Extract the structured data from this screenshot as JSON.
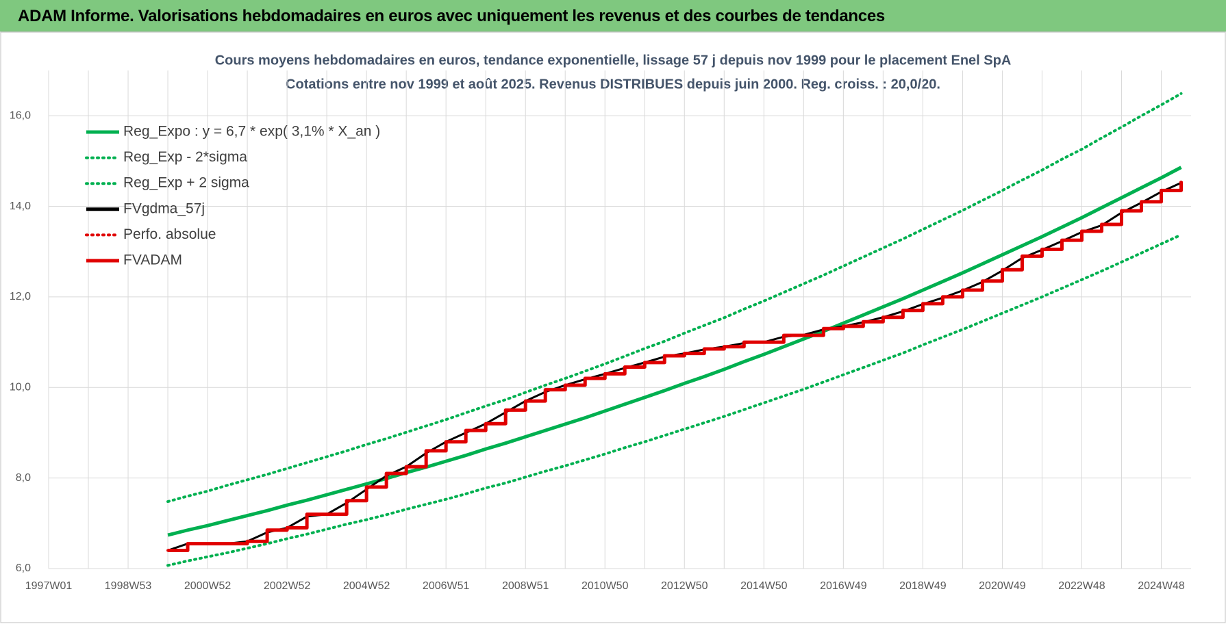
{
  "header": {
    "title": "ADAM Informe. Valorisations hebdomadaires en euros avec uniquement les revenus et des courbes de tendances"
  },
  "chart_data": {
    "type": "line",
    "title": "Cours moyens hebdomadaires en euros, tendance exponentielle, lissage 57 j depuis nov 1999 pour le placement Enel SpA",
    "subtitle": "Cotations entre nov 1999 et août 2025. Revenus DISTRIBUES depuis juin 2000. Reg. croiss. : 20,0/20.",
    "categories": [
      "1997W01",
      null,
      null,
      null,
      "1998W53",
      null,
      null,
      null,
      "2000W52",
      null,
      null,
      null,
      "2002W52",
      null,
      null,
      null,
      "2004W52",
      null,
      null,
      null,
      "2006W51",
      null,
      null,
      null,
      "2008W51",
      null,
      null,
      null,
      "2010W50",
      null,
      null,
      null,
      "2012W50",
      null,
      null,
      null,
      "2014W50",
      null,
      null,
      null,
      "2016W49",
      null,
      null,
      null,
      "2018W49",
      null,
      null,
      null,
      "2020W49",
      null,
      null,
      null,
      "2022W48",
      null,
      null,
      null,
      "2024W48",
      null
    ],
    "ylim": [
      6,
      17
    ],
    "yticks": [
      {
        "value": 6,
        "label": "6,0"
      },
      {
        "value": 8,
        "label": "8,0"
      },
      {
        "value": 10,
        "label": "10,0"
      },
      {
        "value": 12,
        "label": "12,0"
      },
      {
        "value": 14,
        "label": "14,0"
      },
      {
        "value": 16,
        "label": "16,0"
      }
    ],
    "grid": true,
    "legend": "upper left",
    "series": [
      {
        "name": "Reg_Expo : y = 6,7 * exp( 3,1% *  X_an )",
        "color": "#00b050",
        "dash": "solid",
        "values": [
          null,
          null,
          null,
          null,
          null,
          null,
          6.74,
          6.85,
          6.95,
          7.06,
          7.17,
          7.28,
          7.4,
          7.51,
          7.63,
          7.75,
          7.87,
          7.99,
          8.12,
          8.24,
          8.37,
          8.5,
          8.64,
          8.77,
          8.91,
          9.05,
          9.19,
          9.33,
          9.48,
          9.63,
          9.78,
          9.93,
          10.09,
          10.24,
          10.4,
          10.57,
          10.73,
          10.9,
          11.07,
          11.24,
          11.42,
          11.6,
          11.78,
          11.96,
          12.15,
          12.34,
          12.53,
          12.73,
          12.93,
          13.13,
          13.33,
          13.54,
          13.75,
          13.97,
          14.19,
          14.41,
          14.63,
          14.86
        ]
      },
      {
        "name": "Reg_Exp - 2*sigma",
        "color": "#00b050",
        "dash": "dotted",
        "values": [
          null,
          null,
          null,
          null,
          null,
          null,
          6.07,
          6.17,
          6.26,
          6.35,
          6.45,
          6.55,
          6.66,
          6.76,
          6.87,
          6.98,
          7.08,
          7.19,
          7.31,
          7.42,
          7.53,
          7.65,
          7.78,
          7.89,
          8.02,
          8.15,
          8.27,
          8.4,
          8.53,
          8.67,
          8.8,
          8.94,
          9.08,
          9.22,
          9.36,
          9.51,
          9.66,
          9.81,
          9.96,
          10.12,
          10.28,
          10.44,
          10.6,
          10.76,
          10.94,
          11.11,
          11.28,
          11.46,
          11.64,
          11.82,
          12.0,
          12.19,
          12.38,
          12.57,
          12.77,
          12.97,
          13.17,
          13.37
        ]
      },
      {
        "name": "Reg_Exp + 2 sigma",
        "color": "#00b050",
        "dash": "dotted",
        "values": [
          null,
          null,
          null,
          null,
          null,
          null,
          7.48,
          7.6,
          7.71,
          7.84,
          7.96,
          8.08,
          8.21,
          8.34,
          8.47,
          8.6,
          8.74,
          8.87,
          9.01,
          9.15,
          9.29,
          9.44,
          9.59,
          9.73,
          9.89,
          10.05,
          10.2,
          10.36,
          10.52,
          10.69,
          10.86,
          11.02,
          11.2,
          11.37,
          11.54,
          11.73,
          11.91,
          12.1,
          12.29,
          12.48,
          12.68,
          12.88,
          13.08,
          13.28,
          13.49,
          13.7,
          13.91,
          14.13,
          14.35,
          14.58,
          14.8,
          15.04,
          15.26,
          15.51,
          15.75,
          16.0,
          16.24,
          16.49
        ]
      },
      {
        "name": "FVgdma_57j",
        "color": "#000000",
        "dash": "solid",
        "step": false,
        "values": [
          null,
          null,
          null,
          null,
          null,
          null,
          6.4,
          6.55,
          6.55,
          6.55,
          6.6,
          6.8,
          6.9,
          7.15,
          7.2,
          7.45,
          7.75,
          8.05,
          8.25,
          8.55,
          8.8,
          9.0,
          9.2,
          9.45,
          9.7,
          9.9,
          10.05,
          10.18,
          10.3,
          10.43,
          10.55,
          10.68,
          10.75,
          10.84,
          10.9,
          10.98,
          11.0,
          11.12,
          11.16,
          11.28,
          11.35,
          11.44,
          11.55,
          11.68,
          11.84,
          11.98,
          12.14,
          12.33,
          12.58,
          12.86,
          13.04,
          13.23,
          13.43,
          13.58,
          13.86,
          14.08,
          14.32,
          14.52
        ]
      },
      {
        "name": "Perfo. absolue",
        "color": "#e00000",
        "dash": "dotted",
        "step": true,
        "values": [
          null,
          null,
          null,
          null,
          null,
          null,
          6.4,
          6.55,
          6.55,
          6.55,
          6.6,
          6.85,
          6.9,
          7.2,
          7.2,
          7.5,
          7.8,
          8.1,
          8.25,
          8.6,
          8.8,
          9.05,
          9.2,
          9.5,
          9.7,
          9.95,
          10.05,
          10.2,
          10.3,
          10.45,
          10.55,
          10.7,
          10.75,
          10.85,
          10.9,
          11.0,
          11.0,
          11.15,
          11.15,
          11.3,
          11.35,
          11.45,
          11.55,
          11.7,
          11.85,
          12.0,
          12.15,
          12.35,
          12.6,
          12.9,
          13.05,
          13.25,
          13.45,
          13.6,
          13.9,
          14.1,
          14.35,
          14.55
        ]
      },
      {
        "name": "FVADAM",
        "color": "#e00000",
        "dash": "solid",
        "step": true,
        "values": [
          null,
          null,
          null,
          null,
          null,
          null,
          6.4,
          6.55,
          6.55,
          6.55,
          6.6,
          6.85,
          6.9,
          7.2,
          7.2,
          7.5,
          7.8,
          8.1,
          8.25,
          8.6,
          8.8,
          9.05,
          9.2,
          9.5,
          9.7,
          9.95,
          10.05,
          10.2,
          10.3,
          10.45,
          10.55,
          10.7,
          10.75,
          10.85,
          10.9,
          11.0,
          11.0,
          11.15,
          11.15,
          11.3,
          11.35,
          11.45,
          11.55,
          11.7,
          11.85,
          12.0,
          12.15,
          12.35,
          12.6,
          12.9,
          13.05,
          13.25,
          13.45,
          13.6,
          13.9,
          14.1,
          14.35,
          14.55
        ]
      }
    ]
  }
}
